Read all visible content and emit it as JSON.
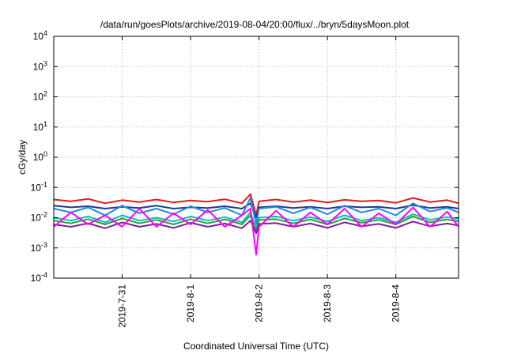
{
  "chart_data": {
    "type": "line",
    "title": "/data/run/goesPlots/archive/2019-08-04/20:00/flux/../bryn/5daysMoon.plot",
    "xlabel": "Coordinated Universal Time (UTC)",
    "ylabel": "cGy/day",
    "yscale": "log",
    "ylim": [
      0.0001,
      10000
    ],
    "y_ticks": [
      {
        "value": 0.0001,
        "exp": "-4"
      },
      {
        "value": 0.001,
        "exp": "-3"
      },
      {
        "value": 0.01,
        "exp": "-2"
      },
      {
        "value": 0.1,
        "exp": "-1"
      },
      {
        "value": 1,
        "exp": "0"
      },
      {
        "value": 10,
        "exp": "1"
      },
      {
        "value": 100,
        "exp": "2"
      },
      {
        "value": 1000,
        "exp": "3"
      },
      {
        "value": 10000,
        "exp": "4"
      }
    ],
    "y_tick_base": "10",
    "xlim": [
      "2019-07-30T00:00",
      "2019-08-04T22:00"
    ],
    "x_ticks": [
      "2019-7-31",
      "2019-8-1",
      "2019-8-2",
      "2019-8-3",
      "2019-8-4"
    ],
    "grid": true,
    "x": [
      "2019-07-30T00:00",
      "2019-07-30T06:00",
      "2019-07-30T12:00",
      "2019-07-30T18:00",
      "2019-07-31T00:00",
      "2019-07-31T06:00",
      "2019-07-31T12:00",
      "2019-07-31T18:00",
      "2019-08-01T00:00",
      "2019-08-01T06:00",
      "2019-08-01T12:00",
      "2019-08-01T18:00",
      "2019-08-01T21:00",
      "2019-08-01T23:00",
      "2019-08-02T00:00",
      "2019-08-02T06:00",
      "2019-08-02T12:00",
      "2019-08-02T18:00",
      "2019-08-03T00:00",
      "2019-08-03T06:00",
      "2019-08-03T12:00",
      "2019-08-03T18:00",
      "2019-08-04T00:00",
      "2019-08-04T06:00",
      "2019-08-04T12:00",
      "2019-08-04T18:00",
      "2019-08-04T22:00"
    ],
    "series": [
      {
        "color": "#e41a1c",
        "values": [
          0.04,
          0.035,
          0.042,
          0.03,
          0.038,
          0.033,
          0.04,
          0.032,
          0.037,
          0.034,
          0.041,
          0.03,
          0.06,
          0.012,
          0.035,
          0.04,
          0.033,
          0.038,
          0.032,
          0.039,
          0.035,
          0.037,
          0.031,
          0.045,
          0.033,
          0.038,
          0.03
        ]
      },
      {
        "color": "#1f3a93",
        "values": [
          0.025,
          0.022,
          0.024,
          0.02,
          0.023,
          0.021,
          0.025,
          0.02,
          0.022,
          0.021,
          0.024,
          0.02,
          0.03,
          0.01,
          0.022,
          0.024,
          0.021,
          0.023,
          0.02,
          0.024,
          0.022,
          0.023,
          0.02,
          0.026,
          0.021,
          0.023,
          0.02
        ]
      },
      {
        "color": "#1e88e5",
        "values": [
          0.02,
          0.015,
          0.022,
          0.012,
          0.025,
          0.014,
          0.02,
          0.013,
          0.024,
          0.015,
          0.021,
          0.012,
          0.045,
          0.006,
          0.02,
          0.023,
          0.014,
          0.022,
          0.013,
          0.025,
          0.015,
          0.02,
          0.012,
          0.03,
          0.016,
          0.021,
          0.015
        ]
      },
      {
        "color": "#00c0c0",
        "values": [
          0.01,
          0.008,
          0.011,
          0.007,
          0.012,
          0.008,
          0.01,
          0.0075,
          0.011,
          0.008,
          0.0105,
          0.007,
          0.015,
          0.004,
          0.01,
          0.011,
          0.008,
          0.0105,
          0.0075,
          0.012,
          0.008,
          0.01,
          0.007,
          0.013,
          0.0085,
          0.0105,
          0.009
        ]
      },
      {
        "color": "#2ca02c",
        "values": [
          0.008,
          0.0065,
          0.009,
          0.006,
          0.0095,
          0.0065,
          0.0085,
          0.006,
          0.009,
          0.0065,
          0.0088,
          0.006,
          0.012,
          0.0035,
          0.0085,
          0.009,
          0.0065,
          0.0088,
          0.006,
          0.0095,
          0.0068,
          0.0085,
          0.006,
          0.011,
          0.007,
          0.0088,
          0.0075
        ]
      },
      {
        "color": "#7b1fa2",
        "values": [
          0.006,
          0.005,
          0.0065,
          0.0045,
          0.007,
          0.005,
          0.0062,
          0.0046,
          0.0068,
          0.005,
          0.0064,
          0.0045,
          0.008,
          0.003,
          0.0062,
          0.0066,
          0.005,
          0.0064,
          0.0046,
          0.007,
          0.0052,
          0.0062,
          0.0046,
          0.0075,
          0.0052,
          0.0064,
          0.0055
        ]
      },
      {
        "color": "#ff00ff",
        "values": [
          0.005,
          0.015,
          0.006,
          0.012,
          0.005,
          0.02,
          0.005,
          0.014,
          0.006,
          0.018,
          0.005,
          0.012,
          0.02,
          0.0006,
          0.005,
          0.017,
          0.005,
          0.015,
          0.006,
          0.02,
          0.005,
          0.014,
          0.006,
          0.022,
          0.005,
          0.016,
          0.005
        ]
      }
    ]
  }
}
